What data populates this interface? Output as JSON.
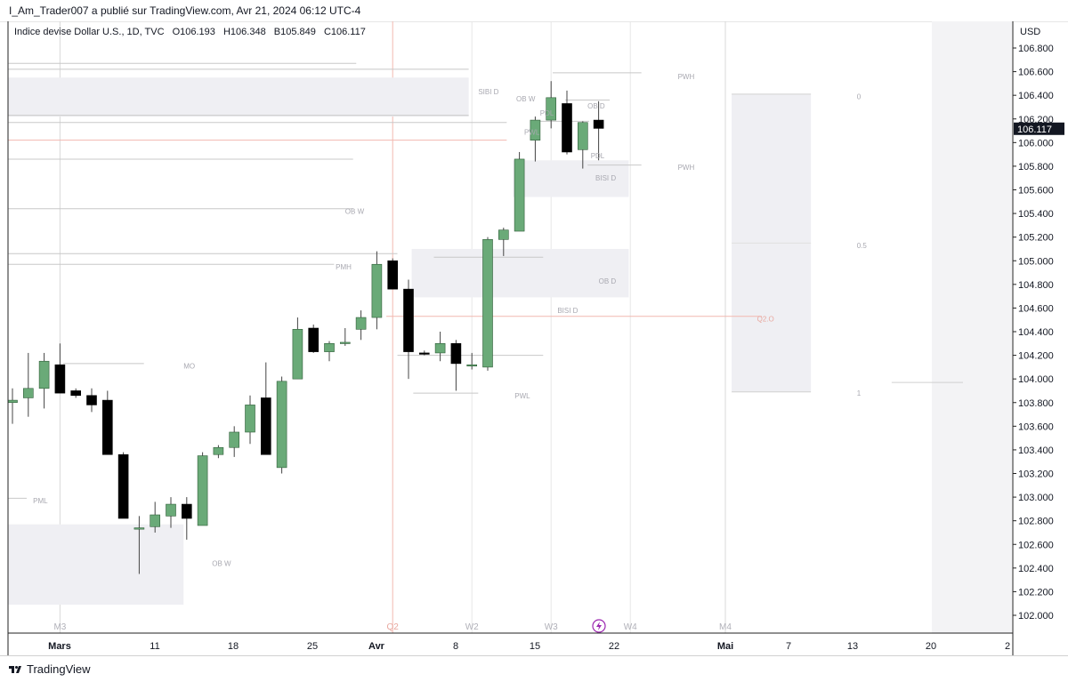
{
  "publication": "I_Am_Trader007 a publié sur TradingView.com, Avr 21, 2024 06:12 UTC-4",
  "brand": "TradingView",
  "header": {
    "symbol": "Indice devise Dollar U.S., 1D, TVC",
    "open": "O106.193",
    "high": "H106.348",
    "low": "B105.849",
    "close": "C106.117"
  },
  "currency": "USD",
  "last_price": "106.117",
  "colors": {
    "up": "#6aaa78",
    "down": "#000000",
    "zone": "#efeff3",
    "pink": "#f2b8b0",
    "level": "#c8c8c8"
  },
  "chart_data": {
    "type": "candlestick",
    "ylim": [
      101.85,
      106.95
    ],
    "y_ticks": [
      "102.000",
      "102.200",
      "102.400",
      "102.600",
      "102.800",
      "103.000",
      "103.200",
      "103.400",
      "103.600",
      "103.800",
      "104.000",
      "104.200",
      "104.400",
      "104.600",
      "104.800",
      "105.000",
      "105.200",
      "105.400",
      "105.600",
      "105.800",
      "106.000",
      "106.200",
      "106.400",
      "106.600",
      "106.800"
    ],
    "x_ticks": [
      {
        "i": 3,
        "label": "Mars",
        "bold": true
      },
      {
        "i": 12,
        "label": "11"
      },
      {
        "i": 17,
        "label": "18"
      },
      {
        "i": 22,
        "label": "25"
      },
      {
        "i": 26,
        "label": "Avr",
        "bold": true
      },
      {
        "i": 31,
        "label": "8"
      },
      {
        "i": 36,
        "label": "15"
      },
      {
        "i": 41,
        "label": "22"
      },
      {
        "i": 49,
        "label": "Mai",
        "bold": true
      },
      {
        "i": 54,
        "label": "7"
      },
      {
        "i": 59,
        "label": "13"
      },
      {
        "i": 64,
        "label": "20"
      },
      {
        "i": 69,
        "label": "2"
      }
    ],
    "period_labels": [
      {
        "i": 3,
        "label": "M3"
      },
      {
        "i": 24,
        "label": "Q2"
      },
      {
        "i": 29,
        "label": "W2"
      },
      {
        "i": 34,
        "label": "W3"
      },
      {
        "i": 39,
        "label": "W4"
      },
      {
        "i": 46,
        "label": "M4"
      }
    ],
    "candles": [
      {
        "i": 0,
        "o": 103.8,
        "h": 103.92,
        "l": 103.62,
        "c": 103.82
      },
      {
        "i": 1,
        "o": 103.84,
        "h": 104.22,
        "l": 103.68,
        "c": 103.92
      },
      {
        "i": 2,
        "o": 103.92,
        "h": 104.22,
        "l": 103.75,
        "c": 104.15
      },
      {
        "i": 3,
        "o": 104.12,
        "h": 104.3,
        "l": 103.88,
        "c": 103.88
      },
      {
        "i": 4,
        "o": 103.9,
        "h": 103.92,
        "l": 103.84,
        "c": 103.86
      },
      {
        "i": 5,
        "o": 103.86,
        "h": 103.92,
        "l": 103.72,
        "c": 103.78
      },
      {
        "i": 6,
        "o": 103.82,
        "h": 103.9,
        "l": 103.36,
        "c": 103.36
      },
      {
        "i": 7,
        "o": 103.36,
        "h": 103.38,
        "l": 102.82,
        "c": 102.82
      },
      {
        "i": 8,
        "o": 102.74,
        "h": 102.84,
        "l": 102.35,
        "c": 102.74
      },
      {
        "i": 9,
        "o": 102.75,
        "h": 102.96,
        "l": 102.7,
        "c": 102.85
      },
      {
        "i": 10,
        "o": 102.84,
        "h": 103.0,
        "l": 102.74,
        "c": 102.94
      },
      {
        "i": 11,
        "o": 102.94,
        "h": 103.0,
        "l": 102.64,
        "c": 102.82
      },
      {
        "i": 12,
        "o": 102.76,
        "h": 103.38,
        "l": 102.76,
        "c": 103.35
      },
      {
        "i": 13,
        "o": 103.36,
        "h": 103.44,
        "l": 103.33,
        "c": 103.42
      },
      {
        "i": 14,
        "o": 103.42,
        "h": 103.6,
        "l": 103.34,
        "c": 103.55
      },
      {
        "i": 15,
        "o": 103.55,
        "h": 103.86,
        "l": 103.45,
        "c": 103.78
      },
      {
        "i": 16,
        "o": 103.84,
        "h": 104.14,
        "l": 103.36,
        "c": 103.36
      },
      {
        "i": 17,
        "o": 103.25,
        "h": 104.02,
        "l": 103.2,
        "c": 103.98
      },
      {
        "i": 18,
        "o": 104.0,
        "h": 104.52,
        "l": 104.0,
        "c": 104.42
      },
      {
        "i": 19,
        "o": 104.43,
        "h": 104.46,
        "l": 104.22,
        "c": 104.23
      },
      {
        "i": 20,
        "o": 104.23,
        "h": 104.32,
        "l": 104.15,
        "c": 104.3
      },
      {
        "i": 21,
        "o": 104.3,
        "h": 104.43,
        "l": 104.28,
        "c": 104.31
      },
      {
        "i": 22,
        "o": 104.42,
        "h": 104.58,
        "l": 104.33,
        "c": 104.52
      },
      {
        "i": 23,
        "o": 104.52,
        "h": 105.08,
        "l": 104.42,
        "c": 104.97
      },
      {
        "i": 24,
        "o": 105.0,
        "h": 105.02,
        "l": 104.76,
        "c": 104.76
      },
      {
        "i": 25,
        "o": 104.76,
        "h": 104.84,
        "l": 104.0,
        "c": 104.23
      },
      {
        "i": 26,
        "o": 104.22,
        "h": 104.24,
        "l": 104.2,
        "c": 104.21
      },
      {
        "i": 27,
        "o": 104.22,
        "h": 104.4,
        "l": 104.15,
        "c": 104.3
      },
      {
        "i": 28,
        "o": 104.3,
        "h": 104.33,
        "l": 103.9,
        "c": 104.13
      },
      {
        "i": 29,
        "o": 104.12,
        "h": 104.22,
        "l": 104.08,
        "c": 104.12
      },
      {
        "i": 30,
        "o": 104.1,
        "h": 105.2,
        "l": 104.07,
        "c": 105.18
      },
      {
        "i": 31,
        "o": 105.18,
        "h": 105.28,
        "l": 105.04,
        "c": 105.26
      },
      {
        "i": 32,
        "o": 105.25,
        "h": 105.92,
        "l": 105.25,
        "c": 105.86
      },
      {
        "i": 33,
        "o": 106.02,
        "h": 106.22,
        "l": 105.84,
        "c": 106.19
      },
      {
        "i": 34,
        "o": 106.19,
        "h": 106.52,
        "l": 106.12,
        "c": 106.38
      },
      {
        "i": 35,
        "o": 106.33,
        "h": 106.44,
        "l": 105.9,
        "c": 105.92
      },
      {
        "i": 36,
        "o": 105.94,
        "h": 106.18,
        "l": 105.78,
        "c": 106.17
      },
      {
        "i": 37,
        "o": 106.19,
        "h": 106.35,
        "l": 105.85,
        "c": 106.12
      }
    ],
    "zones": [
      {
        "x0": -3.6,
        "x1": 28.8,
        "y0": 106.22,
        "y1": 106.55
      },
      {
        "x0": 31.6,
        "x1": 38.9,
        "y0": 105.54,
        "y1": 105.85
      },
      {
        "x0": 25.2,
        "x1": 38.9,
        "y0": 104.69,
        "y1": 105.1
      },
      {
        "x0": -3.6,
        "x1": 10.8,
        "y0": 102.09,
        "y1": 102.77
      },
      {
        "x0": 45.4,
        "x1": 50.4,
        "y0": 103.89,
        "y1": 106.41
      }
    ],
    "hlines": [
      {
        "x0": -3.6,
        "x1": 21.7,
        "y": 106.67,
        "color": "#c8c8c8"
      },
      {
        "x0": -3.6,
        "x1": 28.8,
        "y": 106.62,
        "color": "#c8c8c8"
      },
      {
        "x0": -3.6,
        "x1": 28.8,
        "y": 106.23,
        "color": "#c8c8c8"
      },
      {
        "x0": -3.6,
        "x1": 31.2,
        "y": 106.17,
        "color": "#c8c8c8"
      },
      {
        "x0": -3.6,
        "x1": 31.2,
        "y": 106.02,
        "color": "#f2b8b0"
      },
      {
        "x0": -3.6,
        "x1": 21.5,
        "y": 105.86,
        "color": "#c8c8c8"
      },
      {
        "x0": -3.6,
        "x1": 21.5,
        "y": 105.44,
        "color": "#c8c8c8"
      },
      {
        "x0": -3.6,
        "x1": 24.3,
        "y": 105.06,
        "color": "#c8c8c8"
      },
      {
        "x0": -3.6,
        "x1": 20.3,
        "y": 104.97,
        "color": "#c8c8c8"
      },
      {
        "x0": 26.6,
        "x1": 33.5,
        "y": 105.03,
        "color": "#c8c8c8"
      },
      {
        "x0": 23.6,
        "x1": 47.3,
        "y": 104.53,
        "color": "#f2b8b0"
      },
      {
        "x0": 24.3,
        "x1": 33.5,
        "y": 104.2,
        "color": "#c8c8c8"
      },
      {
        "x0": 3.2,
        "x1": 8.3,
        "y": 104.13,
        "color": "#c8c8c8"
      },
      {
        "x0": -3.6,
        "x1": 0.9,
        "y": 102.99,
        "color": "#c8c8c8"
      },
      {
        "x0": 25.3,
        "x1": 29.4,
        "y": 103.88,
        "color": "#c8c8c8"
      },
      {
        "x0": 34.1,
        "x1": 39.7,
        "y": 106.59,
        "color": "#c8c8c8"
      },
      {
        "x0": 34.9,
        "x1": 37.7,
        "y": 106.36,
        "color": "#c8c8c8"
      },
      {
        "x0": 36.3,
        "x1": 39.7,
        "y": 105.81,
        "color": "#c8c8c8"
      },
      {
        "x0": 33.0,
        "x1": 36.4,
        "y": 106.18,
        "color": "#c8c8c8"
      },
      {
        "x0": 45.4,
        "x1": 50.4,
        "y": 105.15,
        "color": "#e0e0e0"
      },
      {
        "x0": 55.5,
        "x1": 60.0,
        "y": 103.97,
        "color": "#d0d0d0"
      }
    ],
    "annotations": [
      {
        "x": 29.4,
        "y": 106.43,
        "text": "SIBI D"
      },
      {
        "x": 31.8,
        "y": 106.37,
        "text": "OB W"
      },
      {
        "x": 33.3,
        "y": 106.25,
        "text": "PDL"
      },
      {
        "x": 36.3,
        "y": 106.31,
        "text": "OB D"
      },
      {
        "x": 32.3,
        "y": 106.09,
        "text": "PWL"
      },
      {
        "x": 36.5,
        "y": 105.89,
        "text": "PDL"
      },
      {
        "x": 36.8,
        "y": 105.7,
        "text": "BISI D"
      },
      {
        "x": 42.0,
        "y": 106.56,
        "text": "PWH"
      },
      {
        "x": 42.0,
        "y": 105.79,
        "text": "PWH"
      },
      {
        "x": 21.0,
        "y": 105.42,
        "text": "OB W"
      },
      {
        "x": 20.4,
        "y": 104.95,
        "text": "PMH"
      },
      {
        "x": 37.0,
        "y": 104.83,
        "text": "OB D"
      },
      {
        "x": 34.4,
        "y": 104.58,
        "text": "BISI D"
      },
      {
        "x": 47.0,
        "y": 104.51,
        "text": "Q2.O"
      },
      {
        "x": 10.8,
        "y": 104.11,
        "text": "MO"
      },
      {
        "x": 31.7,
        "y": 103.86,
        "text": "PWL"
      },
      {
        "x": 1.3,
        "y": 102.97,
        "text": "PML"
      },
      {
        "x": 12.6,
        "y": 102.44,
        "text": "OB W"
      },
      {
        "x": 53.3,
        "y": 106.39,
        "text": "0"
      },
      {
        "x": 53.3,
        "y": 105.13,
        "text": "0.5"
      },
      {
        "x": 53.3,
        "y": 103.88,
        "text": "1"
      }
    ]
  }
}
